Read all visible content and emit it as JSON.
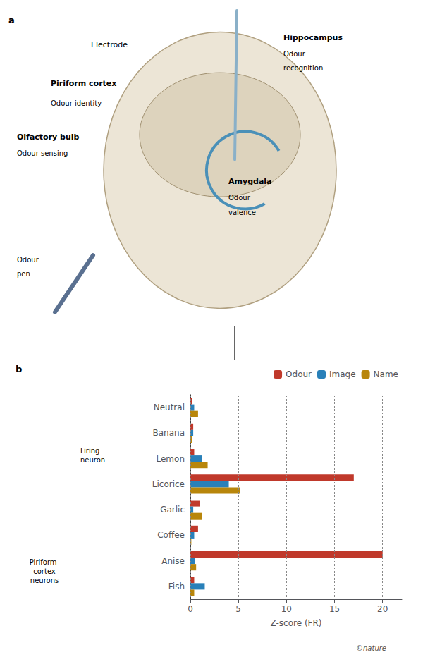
{
  "chart_data": {
    "type": "bar",
    "orientation": "horizontal",
    "categories": [
      "Neutral",
      "Banana",
      "Lemon",
      "Licorice",
      "Garlic",
      "Coffee",
      "Anise",
      "Fish"
    ],
    "series": [
      {
        "name": "Odour",
        "color": "#c0392b",
        "values": [
          0.2,
          0.3,
          0.4,
          17.0,
          1.0,
          0.8,
          20.0,
          0.4
        ]
      },
      {
        "name": "Image",
        "color": "#2980b9",
        "values": [
          0.4,
          0.3,
          1.2,
          4.0,
          0.3,
          0.4,
          0.5,
          1.5
        ]
      },
      {
        "name": "Name",
        "color": "#b8860b",
        "values": [
          0.8,
          0.2,
          1.8,
          5.2,
          1.2,
          0.1,
          0.6,
          0.4
        ]
      }
    ],
    "xlabel": "Z-score (FR)",
    "xlim": [
      0,
      22
    ],
    "xticks": [
      0,
      5,
      10,
      15,
      20
    ],
    "grid": true,
    "legend": "upper right",
    "annotations": [
      "a",
      "Electrode",
      "Piriform cortex",
      "Odour identity",
      "Hippocampus",
      "Odour",
      "recognition",
      "Olfactory bulb",
      "Odour sensing",
      "Amygdala",
      "Odour",
      "valence",
      "Odour",
      "pen",
      "b",
      "Firing\nneuron",
      "Piriform-\ncortex\nneurons",
      "©nature"
    ]
  }
}
